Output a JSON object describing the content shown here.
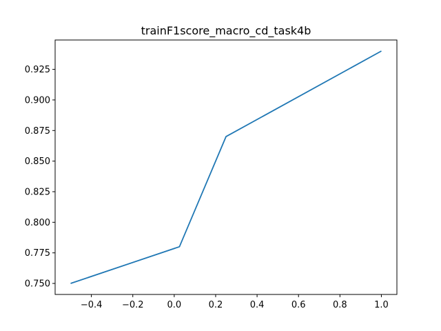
{
  "chart_data": {
    "type": "line",
    "title": "trainF1score_macro_cd_task4b",
    "xlabel": "",
    "ylabel": "",
    "xlim": [
      -0.575,
      1.075
    ],
    "ylim": [
      0.741,
      0.949
    ],
    "xticks": [
      -0.4,
      -0.2,
      0.0,
      0.2,
      0.4,
      0.6,
      0.8,
      1.0
    ],
    "xtick_labels": [
      "−0.4",
      "−0.2",
      "0.0",
      "0.2",
      "0.4",
      "0.6",
      "0.8",
      "1.0"
    ],
    "yticks": [
      0.75,
      0.775,
      0.8,
      0.825,
      0.85,
      0.875,
      0.9,
      0.925
    ],
    "ytick_labels": [
      "0.750",
      "0.775",
      "0.800",
      "0.825",
      "0.850",
      "0.875",
      "0.900",
      "0.925"
    ],
    "grid": false,
    "series": [
      {
        "x": [
          -0.5,
          0.025,
          0.25,
          1.0
        ],
        "y": [
          0.75,
          0.78,
          0.87,
          0.94
        ],
        "color": "#1f77b4"
      }
    ]
  }
}
